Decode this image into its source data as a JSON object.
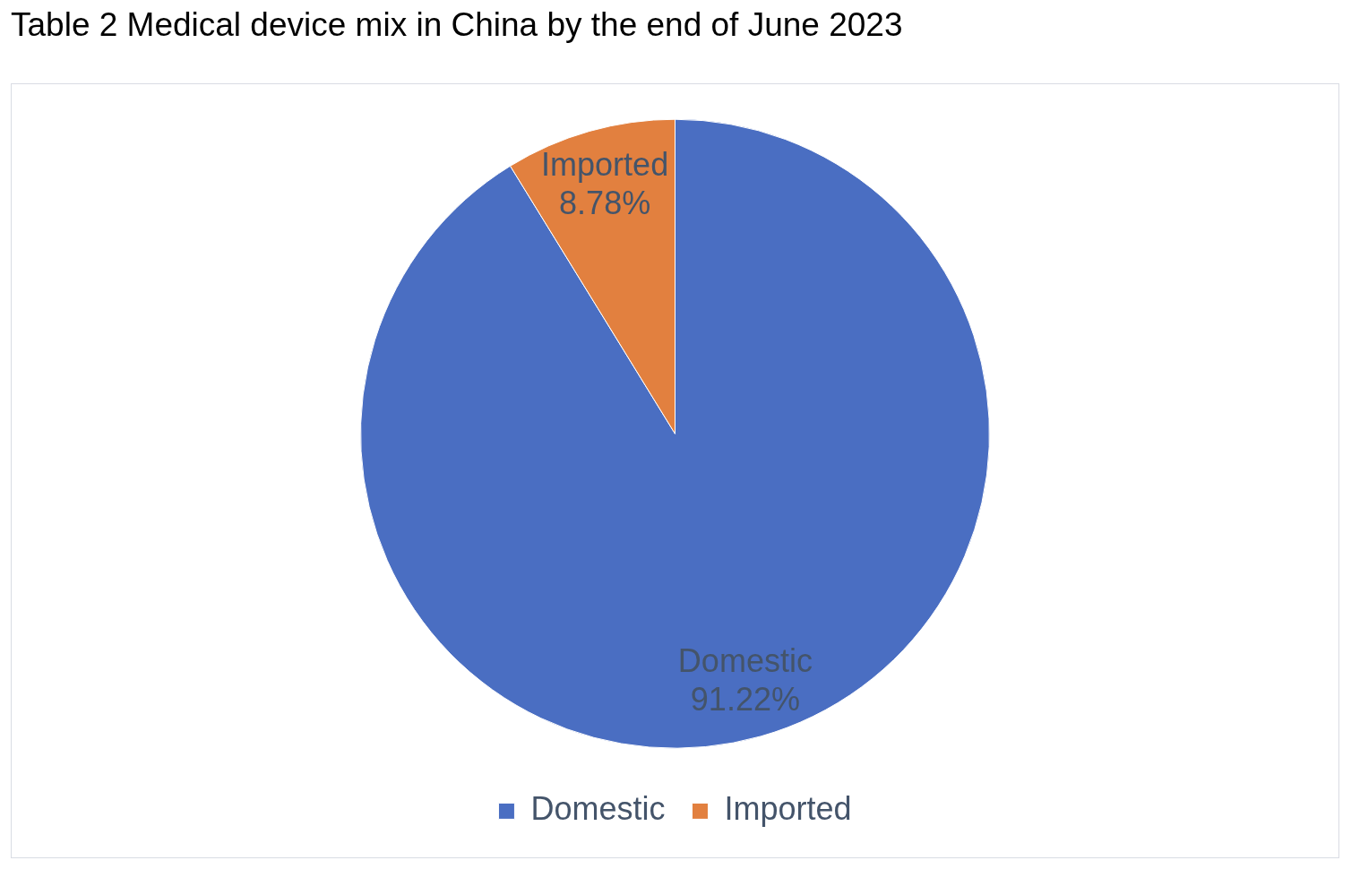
{
  "chart_data": {
    "type": "pie",
    "title": "Table 2 Medical device mix in China by the end of June 2023",
    "categories": [
      "Domestic",
      "Imported"
    ],
    "values": [
      91.22,
      8.78
    ],
    "colors": [
      "#4a6ec2",
      "#e2803f"
    ],
    "value_labels": [
      "91.22%",
      "8.78%"
    ],
    "legend": "bottom"
  }
}
